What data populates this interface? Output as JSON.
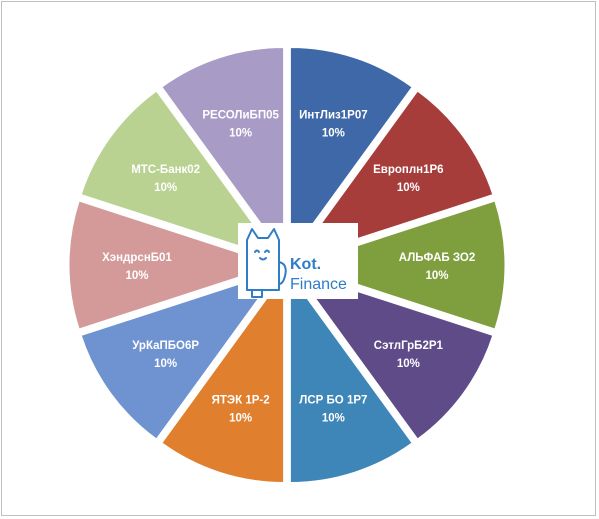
{
  "chart_data": {
    "type": "pie",
    "title": "",
    "style": "exploded",
    "label_format": "percent",
    "slices": [
      {
        "name": "ИнтЛиз1Р07",
        "value": 10,
        "percent_label": "10%",
        "color": "#3f68a8"
      },
      {
        "name": "Европлн1Р6",
        "value": 10,
        "percent_label": "10%",
        "color": "#a63d3b"
      },
      {
        "name": "АЛЬФАБ ЗО2",
        "value": 10,
        "percent_label": "10%",
        "color": "#7f9f3f"
      },
      {
        "name": "СэтлГрБ2Р1",
        "value": 10,
        "percent_label": "10%",
        "color": "#5e4b88"
      },
      {
        "name": "ЛСР БО 1Р7",
        "value": 10,
        "percent_label": "10%",
        "color": "#3f86b8"
      },
      {
        "name": "ЯТЭК 1Р-2",
        "value": 10,
        "percent_label": "10%",
        "color": "#e0802f"
      },
      {
        "name": "УрКаПБО6Р",
        "value": 10,
        "percent_label": "10%",
        "color": "#6f93d0"
      },
      {
        "name": "ХэндрснБ01",
        "value": 10,
        "percent_label": "10%",
        "color": "#d49a9a"
      },
      {
        "name": "МТС-Банк02",
        "value": 10,
        "percent_label": "10%",
        "color": "#b9d291"
      },
      {
        "name": "РЕСОЛиБП05",
        "value": 10,
        "percent_label": "10%",
        "color": "#a89bc6"
      }
    ]
  },
  "logo": {
    "line1": "Kot.",
    "line2": "Finance",
    "color": "#2f7cc7",
    "icon": "cat-icon"
  }
}
